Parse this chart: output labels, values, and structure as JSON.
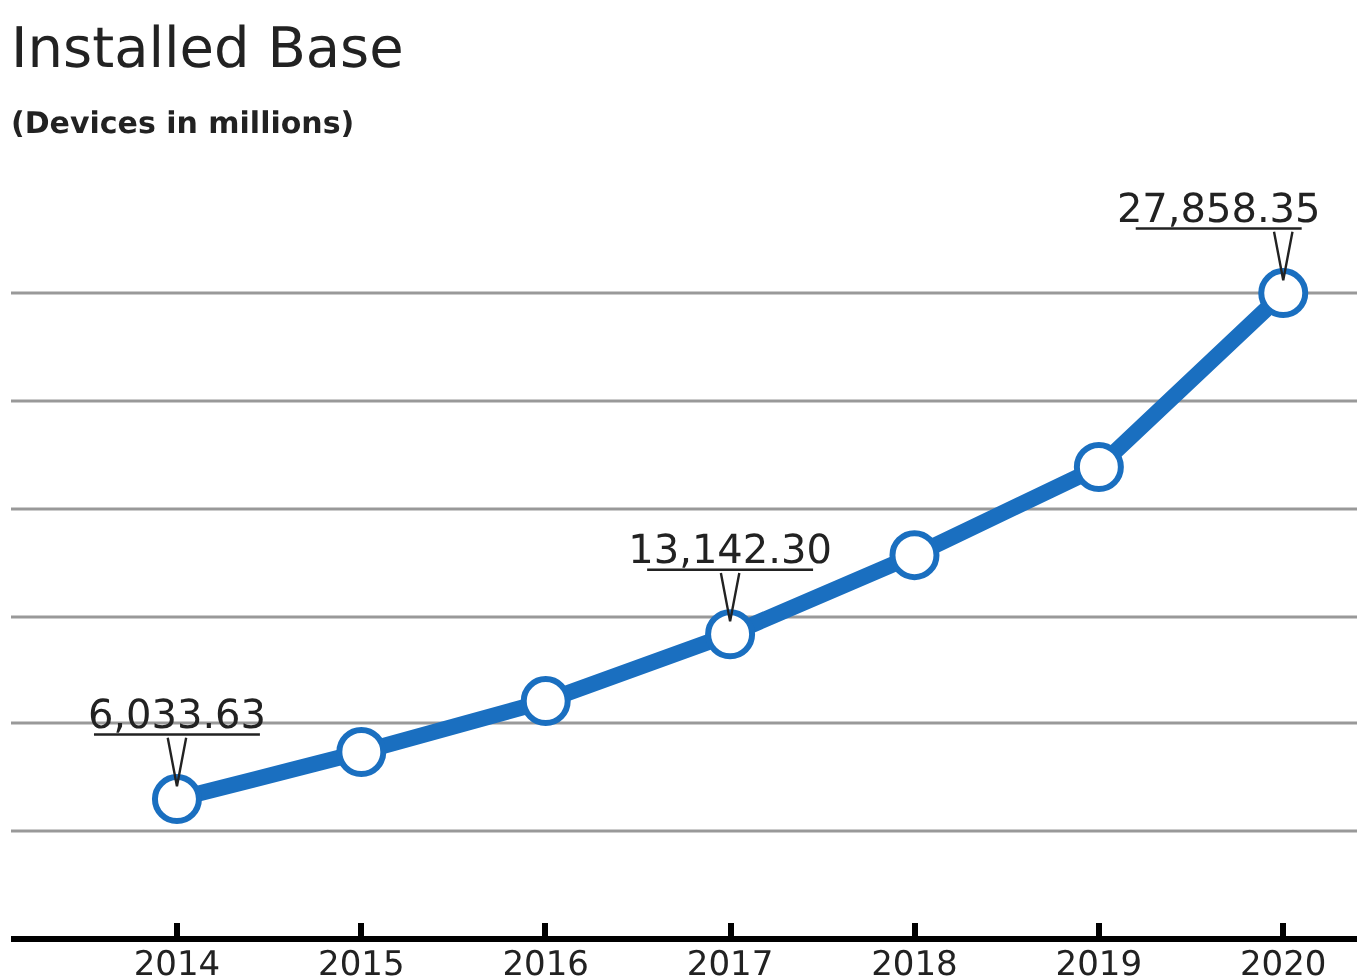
{
  "chart_data": {
    "type": "line",
    "title": "Installed Base",
    "subtitle": "(Devices in millions)",
    "categories": [
      "2014",
      "2015",
      "2016",
      "2017",
      "2018",
      "2019",
      "2020"
    ],
    "series": [
      {
        "color": "#1a6fc0",
        "values": [
          6033.63,
          8065,
          10261,
          13142.3,
          16555,
          20357,
          27858.35
        ],
        "value_labels": [
          "6,033.63",
          null,
          null,
          "13,142.30",
          null,
          null,
          "27,858.35"
        ]
      }
    ],
    "marker": "circle",
    "line_style": "solid",
    "grid": "y"
  }
}
